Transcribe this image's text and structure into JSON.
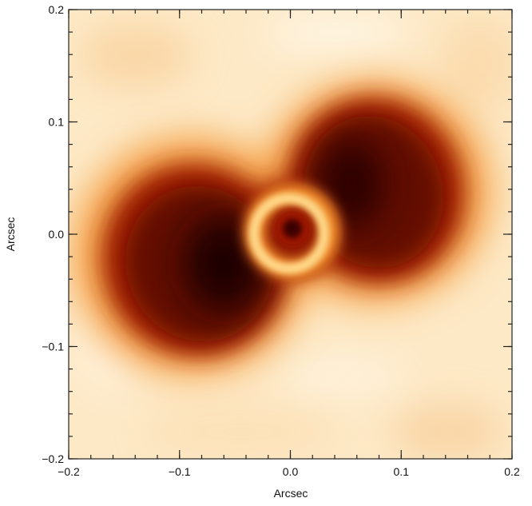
{
  "axes": {
    "xlabel": "Arcsec",
    "ylabel": "Arcsec",
    "x_ticks": [
      {
        "value": -0.2,
        "label": "−0.2"
      },
      {
        "value": -0.1,
        "label": "−0.1"
      },
      {
        "value": 0.0,
        "label": "0.0"
      },
      {
        "value": 0.1,
        "label": "0.1"
      },
      {
        "value": 0.2,
        "label": "0.2"
      }
    ],
    "y_ticks": [
      {
        "value": 0.2,
        "label": "0.2"
      },
      {
        "value": 0.1,
        "label": "0.1"
      },
      {
        "value": 0.0,
        "label": "0.0"
      },
      {
        "value": -0.1,
        "label": "−0.1"
      },
      {
        "value": -0.2,
        "label": "−0.2"
      }
    ],
    "xlim": [
      -0.2,
      0.2
    ],
    "ylim": [
      -0.2,
      0.2
    ]
  },
  "image": {
    "colormap": "heat (white → orange → dark red → black)",
    "colors": {
      "background": "#fde9c6",
      "halo": "#f39a3a",
      "lobes": "#6b0b00",
      "core": "#1c0000",
      "ring": "#ffcf7a"
    }
  }
}
